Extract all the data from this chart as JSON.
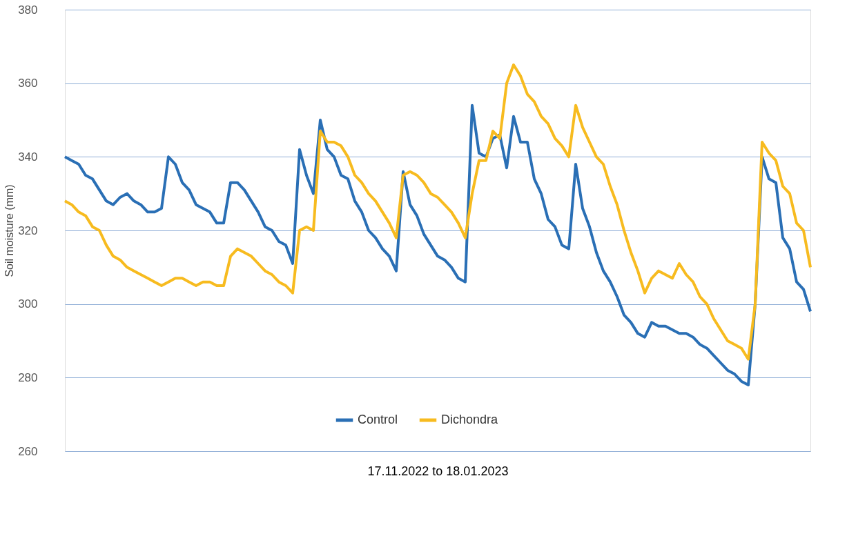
{
  "chart_data": {
    "type": "line",
    "ylabel": "Soil moisture (mm)",
    "xlabel": "17.11.2022 to 18.01.2023",
    "categories": [
      null,
      null,
      null,
      null,
      null,
      null,
      null,
      null,
      null,
      null,
      null,
      null,
      null,
      null,
      null,
      null,
      null,
      null,
      null,
      null,
      null,
      null,
      null,
      null,
      null,
      null,
      null,
      null,
      null,
      null,
      null,
      null,
      null,
      null,
      null,
      null,
      null,
      null,
      null,
      null,
      null,
      null,
      null,
      null,
      null,
      null,
      null,
      null,
      null,
      null,
      null,
      null,
      null,
      null,
      null,
      null,
      null,
      null,
      null,
      null,
      null,
      null,
      null,
      null,
      null,
      null,
      null,
      null,
      null,
      null,
      null,
      null,
      null,
      null,
      null,
      null,
      null,
      null,
      null,
      null,
      null,
      null,
      null,
      null,
      null,
      null,
      null,
      null,
      null,
      null,
      null,
      null,
      null,
      null,
      null,
      null,
      null,
      null,
      null,
      null,
      null,
      null,
      null,
      null,
      null,
      null,
      null,
      null,
      null
    ],
    "series": [
      {
        "name": "Control",
        "color": "#2a6fb5",
        "values": [
          340,
          339,
          338,
          335,
          334,
          331,
          328,
          327,
          329,
          330,
          328,
          327,
          325,
          325,
          326,
          340,
          338,
          333,
          331,
          327,
          326,
          325,
          322,
          322,
          333,
          333,
          331,
          328,
          325,
          321,
          320,
          317,
          316,
          311,
          342,
          335,
          330,
          350,
          342,
          340,
          335,
          334,
          328,
          325,
          320,
          318,
          315,
          313,
          309,
          336,
          327,
          324,
          319,
          316,
          313,
          312,
          310,
          307,
          306,
          354,
          341,
          340,
          345,
          346,
          337,
          351,
          344,
          344,
          334,
          330,
          323,
          321,
          316,
          315,
          338,
          326,
          321,
          314,
          309,
          306,
          302,
          297,
          295,
          292,
          291,
          295,
          294,
          294,
          293,
          292,
          292,
          291,
          289,
          288,
          286,
          284,
          282,
          281,
          279,
          278,
          300,
          340,
          334,
          333,
          318,
          315,
          306,
          304,
          298
        ]
      },
      {
        "name": "Dichondra",
        "color": "#f7bb1f",
        "values": [
          328,
          327,
          325,
          324,
          321,
          320,
          316,
          313,
          312,
          310,
          309,
          308,
          307,
          306,
          305,
          306,
          307,
          307,
          306,
          305,
          306,
          306,
          305,
          305,
          313,
          315,
          314,
          313,
          311,
          309,
          308,
          306,
          305,
          303,
          320,
          321,
          320,
          347,
          344,
          344,
          343,
          340,
          335,
          333,
          330,
          328,
          325,
          322,
          318,
          335,
          336,
          335,
          333,
          330,
          329,
          327,
          325,
          322,
          318,
          330,
          339,
          339,
          347,
          345,
          360,
          365,
          362,
          357,
          355,
          351,
          349,
          345,
          343,
          340,
          354,
          348,
          344,
          340,
          338,
          332,
          327,
          320,
          314,
          309,
          303,
          307,
          309,
          308,
          307,
          311,
          308,
          306,
          302,
          300,
          296,
          293,
          290,
          289,
          288,
          285,
          300,
          344,
          341,
          339,
          332,
          330,
          322,
          320,
          310
        ]
      }
    ],
    "ylim": [
      260,
      380
    ],
    "yticks": [
      260,
      280,
      300,
      320,
      340,
      360,
      380
    ],
    "grid": "y",
    "legend": "bottom",
    "tick_labels": "y",
    "line_style": "solid",
    "marker": "none"
  }
}
